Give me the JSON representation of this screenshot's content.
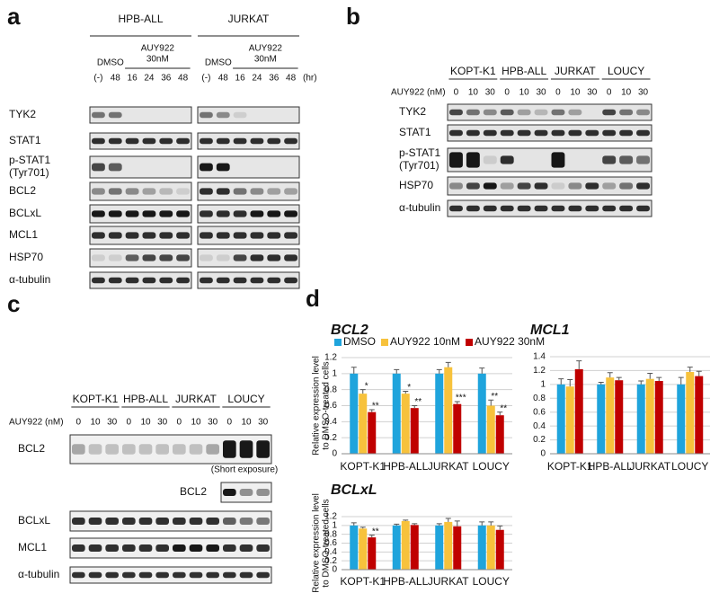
{
  "panel_a": {
    "label": "a",
    "groups": [
      "HPB-ALL",
      "JURKAT"
    ],
    "dmso": "DMSO",
    "auy922": [
      "AUY922",
      "30nM"
    ],
    "lanes": [
      "(-)",
      "48",
      "16",
      "24",
      "36",
      "48"
    ],
    "time_unit": "(hr)",
    "rows": [
      [
        "TYK2"
      ],
      [
        "STAT1"
      ],
      [
        "p-STAT1",
        "(Tyr701)"
      ],
      [
        "BCL2"
      ],
      [
        "BCLxL"
      ],
      [
        "MCL1"
      ],
      [
        "HSP70"
      ],
      [
        "α-tubulin"
      ]
    ]
  },
  "panel_b": {
    "label": "b",
    "groups": [
      "KOPT-K1",
      "HPB-ALL",
      "JURKAT",
      "LOUCY"
    ],
    "dose_label": "AUY922 (nM)",
    "lanes": [
      "0",
      "10",
      "30"
    ],
    "rows": [
      [
        "TYK2"
      ],
      [
        "STAT1"
      ],
      [
        "p-STAT1",
        "(Tyr701)"
      ],
      [
        "HSP70"
      ],
      [
        "α-tubulin"
      ]
    ]
  },
  "panel_c": {
    "label": "c",
    "groups": [
      "KOPT-K1",
      "HPB-ALL",
      "JURKAT",
      "LOUCY"
    ],
    "dose_label": "AUY922 (nM)",
    "lanes": [
      "0",
      "10",
      "30"
    ],
    "rows": [
      [
        "BCL2"
      ],
      [
        "BCLxL"
      ],
      [
        "MCL1"
      ],
      [
        "α-tubulin"
      ]
    ],
    "short_exposure": {
      "note": "(Short exposure)",
      "label": "BCL2"
    }
  },
  "panel_d": {
    "label": "d"
  },
  "chart_data": [
    {
      "type": "bar",
      "title": "BCL2",
      "y_label": [
        "Relative expression level",
        "to DMSO-treated cells"
      ],
      "legend": true,
      "categories": [
        "KOPT-K1",
        "HPB-ALL",
        "JURKAT",
        "LOUCY"
      ],
      "ylim": [
        0,
        1.2
      ],
      "yticks": [
        0,
        0.2,
        0.4,
        0.6,
        0.8,
        1,
        1.2
      ],
      "grid": true,
      "series": [
        {
          "name": "DMSO",
          "color": "#1fa4dc",
          "values": [
            1,
            1,
            1,
            1
          ],
          "errors": [
            0.08,
            0.05,
            0.05,
            0.07
          ],
          "significance": [
            null,
            null,
            null,
            null
          ]
        },
        {
          "name": "AUY922 10nM",
          "color": "#f7c23c",
          "values": [
            0.75,
            0.75,
            1.08,
            0.6
          ],
          "errors": [
            0.05,
            0.03,
            0.06,
            0.07
          ],
          "significance": [
            "*",
            "*",
            null,
            "**"
          ]
        },
        {
          "name": "AUY922 30nM",
          "color": "#c00000",
          "values": [
            0.52,
            0.57,
            0.62,
            0.48
          ],
          "errors": [
            0.03,
            0.03,
            0.03,
            0.04
          ],
          "significance": [
            "**",
            "**",
            "***",
            "**"
          ]
        }
      ]
    },
    {
      "type": "bar",
      "title": "MCL1",
      "legend": false,
      "categories": [
        "KOPT-K1",
        "HPB-ALL",
        "JURKAT",
        "LOUCY"
      ],
      "ylim": [
        0,
        1.4
      ],
      "yticks": [
        0,
        0.2,
        0.4,
        0.6,
        0.8,
        1,
        1.2,
        1.4
      ],
      "grid": true,
      "series": [
        {
          "color": "#1fa4dc",
          "values": [
            1,
            1,
            1,
            1
          ],
          "errors": [
            0.08,
            0.03,
            0.05,
            0.1
          ]
        },
        {
          "color": "#f7c23c",
          "values": [
            0.97,
            1.1,
            1.08,
            1.18
          ],
          "errors": [
            0.1,
            0.07,
            0.08,
            0.07
          ]
        },
        {
          "color": "#c00000",
          "values": [
            1.22,
            1.06,
            1.05,
            1.12
          ],
          "errors": [
            0.12,
            0.04,
            0.05,
            0.07
          ]
        }
      ]
    },
    {
      "type": "bar",
      "title": "BCLxL",
      "y_label": [
        "Relative expression level",
        "to DMSO-treated cells"
      ],
      "legend": false,
      "categories": [
        "KOPT-K1",
        "HPB-ALL",
        "JURKAT",
        "LOUCY"
      ],
      "ylim": [
        0,
        1.2
      ],
      "yticks": [
        0,
        0.2,
        0.4,
        0.6,
        0.8,
        1,
        1.2
      ],
      "grid": true,
      "series": [
        {
          "color": "#1fa4dc",
          "values": [
            1,
            1,
            1,
            1
          ],
          "errors": [
            0.06,
            0.03,
            0.04,
            0.08
          ]
        },
        {
          "color": "#f7c23c",
          "values": [
            0.93,
            1.1,
            1.08,
            1
          ],
          "errors": [
            0.03,
            0.02,
            0.08,
            0.08
          ]
        },
        {
          "color": "#c00000",
          "values": [
            0.73,
            1.01,
            0.98,
            0.9
          ],
          "errors": [
            0.05,
            0.03,
            0.12,
            0.09
          ],
          "significance": [
            "**",
            null,
            null,
            null
          ]
        }
      ]
    }
  ]
}
